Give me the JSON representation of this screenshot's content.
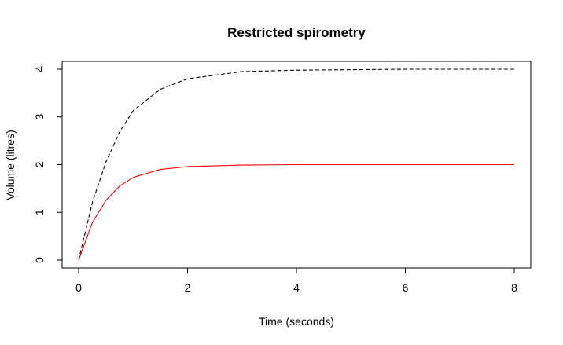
{
  "chart_data": {
    "type": "line",
    "title": "Restricted spirometry",
    "xlabel": "Time (seconds)",
    "ylabel": "Volume (litres)",
    "xlim": [
      0,
      8
    ],
    "ylim": [
      0,
      4
    ],
    "xticks": [
      0,
      2,
      4,
      6,
      8
    ],
    "yticks": [
      0,
      1,
      2,
      3,
      4
    ],
    "grid": false,
    "series": [
      {
        "style": "dashed",
        "color": "#000000",
        "x": [
          0,
          0.25,
          0.5,
          0.75,
          1,
          1.5,
          2,
          3,
          4,
          5,
          6,
          7,
          8
        ],
        "values": [
          0,
          1.2,
          2.05,
          2.68,
          3.13,
          3.58,
          3.8,
          3.95,
          3.98,
          3.99,
          4.0,
          4.0,
          4.0
        ]
      },
      {
        "style": "solid",
        "color": "#ff0000",
        "x": [
          0,
          0.25,
          0.5,
          0.75,
          1,
          1.5,
          2,
          3,
          4,
          5,
          6,
          7,
          8
        ],
        "values": [
          0,
          0.78,
          1.25,
          1.55,
          1.73,
          1.9,
          1.96,
          1.99,
          2.0,
          2.0,
          2.0,
          2.0,
          2.0
        ]
      }
    ]
  }
}
